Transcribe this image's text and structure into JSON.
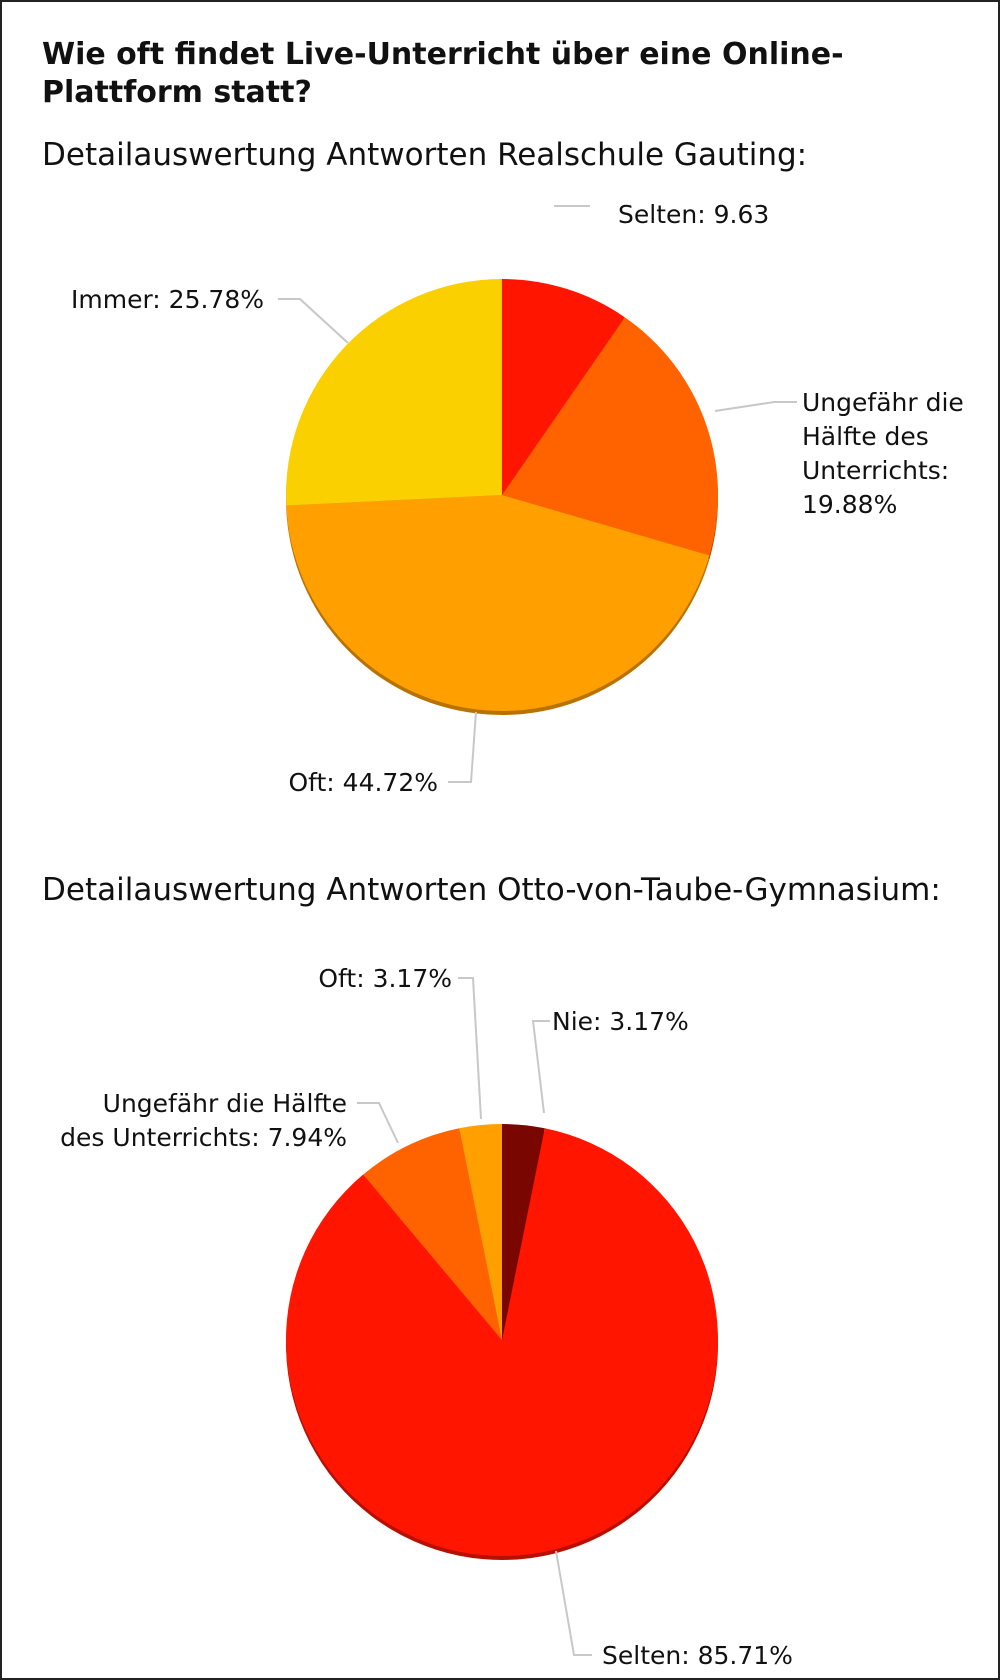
{
  "title": "Wie oft findet Live-Unterricht über eine Online-Plattform statt?",
  "chart_data": [
    {
      "type": "pie",
      "title": "Detailauswertung Antworten Realschule Gauting:",
      "slices": [
        {
          "label": "Selten",
          "value": 9.63,
          "value_text": "9.63",
          "color": "#ff1500"
        },
        {
          "label": "Ungefähr die Hälfte des Unterrichts",
          "value": 19.88,
          "value_text": "19.88%",
          "color": "#ff6300"
        },
        {
          "label": "Oft",
          "value": 44.72,
          "value_text": "44.72%",
          "color": "#ff9f00"
        },
        {
          "label": "Immer",
          "value": 25.78,
          "value_text": "25.78%",
          "color": "#fad000"
        }
      ],
      "label_lines": [
        [
          "Selten: 9.63"
        ],
        [
          "Ungefähr die",
          "Hälfte des",
          "Unterrichts:",
          "19.88%"
        ],
        [
          "Oft: 44.72%"
        ],
        [
          "Immer: 25.78%"
        ]
      ]
    },
    {
      "type": "pie",
      "title": "Detailauswertung Antworten Otto-von-Taube-Gymnasium:",
      "slices": [
        {
          "label": "Nie",
          "value": 3.17,
          "value_text": "3.17%",
          "color": "#7a0600"
        },
        {
          "label": "Selten",
          "value": 85.71,
          "value_text": "85.71%",
          "color": "#ff1500"
        },
        {
          "label": "Ungefähr die Hälfte des Unterrichts",
          "value": 7.94,
          "value_text": "7.94%",
          "color": "#ff6300"
        },
        {
          "label": "Oft",
          "value": 3.17,
          "value_text": "3.17%",
          "color": "#ff9f00"
        }
      ],
      "label_lines": [
        [
          "Nie: 3.17%"
        ],
        [
          "Selten: 85.71%"
        ],
        [
          "Ungefähr die Hälfte",
          "des Unterrichts: 7.94%"
        ],
        [
          "Oft: 3.17%"
        ]
      ]
    }
  ]
}
